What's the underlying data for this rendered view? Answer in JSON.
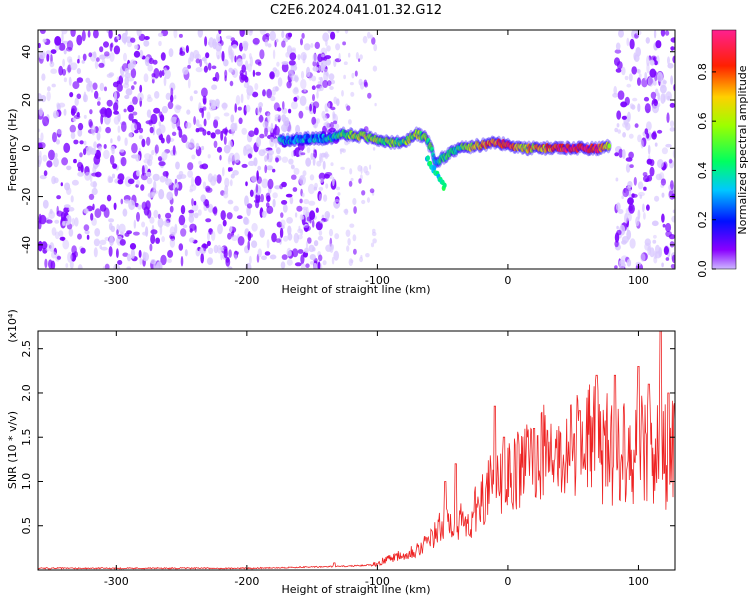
{
  "title": "C2E6.2024.041.01.32.G12",
  "colors": {
    "snr_line": "#ee2222",
    "spectrogram_noise": "#7a00ff",
    "spectrogram_light": "#d9c8ff",
    "axis": "#000000"
  },
  "chart_data": [
    {
      "type": "heatmap",
      "name": "spectrogram",
      "xlabel": "Height of straight line (km)",
      "ylabel": "Frequency (Hz)",
      "xlim": [
        -360,
        128
      ],
      "ylim": [
        -50,
        49
      ],
      "x_ticks": [
        -300,
        -200,
        -100,
        0,
        100
      ],
      "y_ticks": [
        -40,
        -20,
        0,
        20,
        40
      ],
      "colorbar": {
        "label": "Normalized spectral amplitude",
        "range": [
          0.0,
          0.97
        ],
        "ticks": [
          "0.0",
          "0.2",
          "0.4",
          "0.6",
          "0.8"
        ],
        "colormap": "hsv-rainbow (violet → blue → cyan → green → yellow → red → pink)"
      },
      "regions": [
        {
          "x_range": [
            -360,
            -130
          ],
          "description_value": "broadband noise, amplitude 0.05-0.15"
        },
        {
          "x_range": [
            -130,
            80
          ],
          "description_value": "signal trace near 0 Hz, amplitude up to 0.9"
        },
        {
          "x_range": [
            82,
            128
          ],
          "description_value": "broadband noise, amplitude 0.05-0.15"
        }
      ],
      "signal_trace": {
        "x": [
          -175,
          -160,
          -140,
          -125,
          -110,
          -95,
          -80,
          -70,
          -62,
          -55,
          -45,
          -35,
          -25,
          -15,
          -5,
          0,
          10,
          25,
          40,
          55,
          70,
          78
        ],
        "freq": [
          3,
          4,
          4,
          6,
          5,
          3,
          2,
          6,
          4,
          -6,
          -2,
          0,
          1,
          2,
          2,
          2,
          0,
          0,
          0,
          0,
          0,
          1
        ],
        "amplitude": [
          0.3,
          0.3,
          0.3,
          0.5,
          0.6,
          0.55,
          0.5,
          0.6,
          0.5,
          0.4,
          0.45,
          0.5,
          0.7,
          0.8,
          0.85,
          0.9,
          0.7,
          0.7,
          0.9,
          0.9,
          0.85,
          0.6
        ]
      }
    },
    {
      "type": "line",
      "name": "snr",
      "xlabel": "Height of straight line (km)",
      "ylabel": "SNR (10 * v/v)",
      "y_multiplier": "(x10⁴)",
      "xlim": [
        -360,
        128
      ],
      "ylim": [
        0,
        2.7
      ],
      "x_ticks": [
        -300,
        -200,
        -100,
        0,
        100
      ],
      "y_ticks": [
        "0.5",
        "1.0",
        "1.5",
        "2.0",
        "2.5"
      ],
      "envelope": {
        "x": [
          -360,
          -320,
          -280,
          -240,
          -200,
          -160,
          -130,
          -110,
          -100,
          -90,
          -80,
          -70,
          -60,
          -50,
          -40,
          -30,
          -20,
          -10,
          0,
          10,
          20,
          30,
          40,
          50,
          60,
          70,
          80,
          90,
          100,
          110,
          120,
          128
        ],
        "y": [
          0.02,
          0.02,
          0.02,
          0.02,
          0.02,
          0.03,
          0.04,
          0.05,
          0.08,
          0.15,
          0.2,
          0.25,
          0.35,
          0.55,
          0.6,
          0.55,
          0.9,
          1.05,
          1.1,
          1.25,
          1.4,
          1.45,
          1.35,
          1.5,
          1.6,
          1.5,
          1.4,
          1.5,
          1.4,
          1.45,
          1.35,
          1.4
        ]
      },
      "peaks": [
        {
          "x": -133,
          "y": 0.08
        },
        {
          "x": -48,
          "y": 1.0
        },
        {
          "x": -40,
          "y": 1.2
        },
        {
          "x": -10,
          "y": 1.85
        },
        {
          "x": -3,
          "y": 1.5
        },
        {
          "x": 20,
          "y": 1.6
        },
        {
          "x": 55,
          "y": 1.8
        },
        {
          "x": 68,
          "y": 2.2
        },
        {
          "x": 82,
          "y": 2.2
        },
        {
          "x": 100,
          "y": 2.3
        },
        {
          "x": 108,
          "y": 2.1
        },
        {
          "x": 117,
          "y": 2.7
        },
        {
          "x": 123,
          "y": 2.0
        }
      ]
    }
  ]
}
